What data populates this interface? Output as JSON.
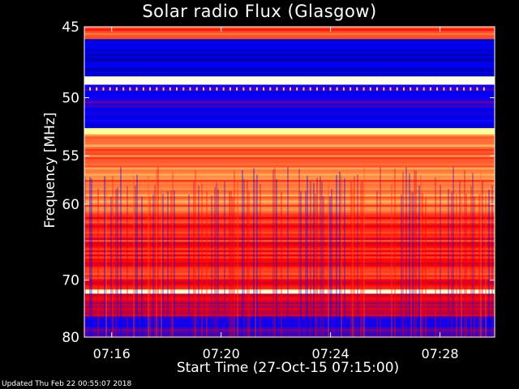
{
  "chart_data": {
    "type": "heatmap",
    "title": "Solar radio Flux (Glasgow)",
    "xlabel": "Start Time (27-Oct-15 07:15:00)",
    "ylabel": "Frequency [MHz]",
    "x_ticks": [
      "07:16",
      "07:20",
      "07:24",
      "07:28"
    ],
    "x_tick_minutes": [
      16,
      20,
      24,
      28
    ],
    "x_range_minutes": [
      15,
      30
    ],
    "y_ticks": [
      45,
      50,
      55,
      60,
      70,
      80
    ],
    "y_range_mhz": [
      45,
      80
    ],
    "y_scale": "reciprocal",
    "colormap": [
      "#000060",
      "#0000ff",
      "#ff0000",
      "#ffff80",
      "#ffffff"
    ],
    "bands": [
      {
        "from": 45.0,
        "to": 45.8,
        "level": 0.55
      },
      {
        "from": 45.8,
        "to": 48.4,
        "level": 0.18
      },
      {
        "from": 48.4,
        "to": 49.0,
        "level": 0.95
      },
      {
        "from": 49.0,
        "to": 51.0,
        "level": 0.28
      },
      {
        "from": 51.0,
        "to": 52.5,
        "level": 0.22
      },
      {
        "from": 52.5,
        "to": 53.0,
        "level": 0.8
      },
      {
        "from": 53.0,
        "to": 61.0,
        "level": 0.62
      },
      {
        "from": 61.0,
        "to": 71.5,
        "level": 0.52
      },
      {
        "from": 71.5,
        "to": 72.0,
        "level": 0.88
      },
      {
        "from": 72.0,
        "to": 76.0,
        "level": 0.45
      },
      {
        "from": 76.0,
        "to": 80.0,
        "level": 0.3
      }
    ]
  },
  "footer": {
    "updated": "Updated Thu Feb 22 00:55:07 2018"
  }
}
